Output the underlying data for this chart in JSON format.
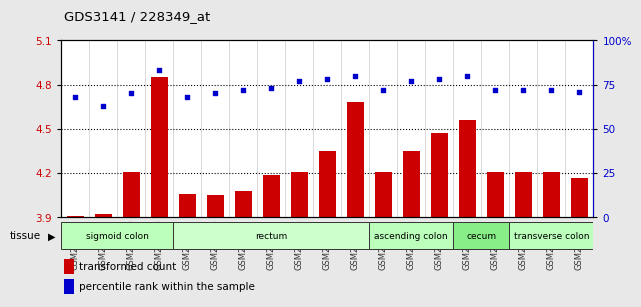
{
  "title": "GDS3141 / 228349_at",
  "samples": [
    "GSM234909",
    "GSM234910",
    "GSM234916",
    "GSM234926",
    "GSM234911",
    "GSM234914",
    "GSM234915",
    "GSM234923",
    "GSM234924",
    "GSM234925",
    "GSM234927",
    "GSM234913",
    "GSM234918",
    "GSM234919",
    "GSM234912",
    "GSM234917",
    "GSM234920",
    "GSM234921",
    "GSM234922"
  ],
  "bar_values": [
    3.91,
    3.92,
    4.21,
    4.85,
    4.06,
    4.05,
    4.08,
    4.19,
    4.21,
    4.35,
    4.68,
    4.21,
    4.35,
    4.47,
    4.56,
    4.21,
    4.21,
    4.21,
    4.17
  ],
  "dot_values_pct": [
    68,
    63,
    70,
    83,
    68,
    70,
    72,
    73,
    77,
    78,
    80,
    72,
    77,
    78,
    80,
    72,
    72,
    72,
    71
  ],
  "bar_color": "#cc0000",
  "dot_color": "#0000cc",
  "ylim_left": [
    3.9,
    5.1
  ],
  "ylim_right": [
    0,
    100
  ],
  "yticks_left": [
    3.9,
    4.2,
    4.5,
    4.8,
    5.1
  ],
  "yticks_right": [
    0,
    25,
    50,
    75,
    100
  ],
  "hlines": [
    4.2,
    4.5,
    4.8
  ],
  "tissue_groups": [
    {
      "label": "sigmoid colon",
      "start": 0,
      "end": 4,
      "color": "#bbffbb"
    },
    {
      "label": "rectum",
      "start": 4,
      "end": 11,
      "color": "#ccffcc"
    },
    {
      "label": "ascending colon",
      "start": 11,
      "end": 14,
      "color": "#bbffbb"
    },
    {
      "label": "cecum",
      "start": 14,
      "end": 16,
      "color": "#88ee88"
    },
    {
      "label": "transverse colon",
      "start": 16,
      "end": 19,
      "color": "#bbffbb"
    }
  ],
  "legend_bar": "transformed count",
  "legend_dot": "percentile rank within the sample",
  "tissue_label": "tissue",
  "background_color": "#e8e8e8",
  "plot_bg": "#ffffff"
}
